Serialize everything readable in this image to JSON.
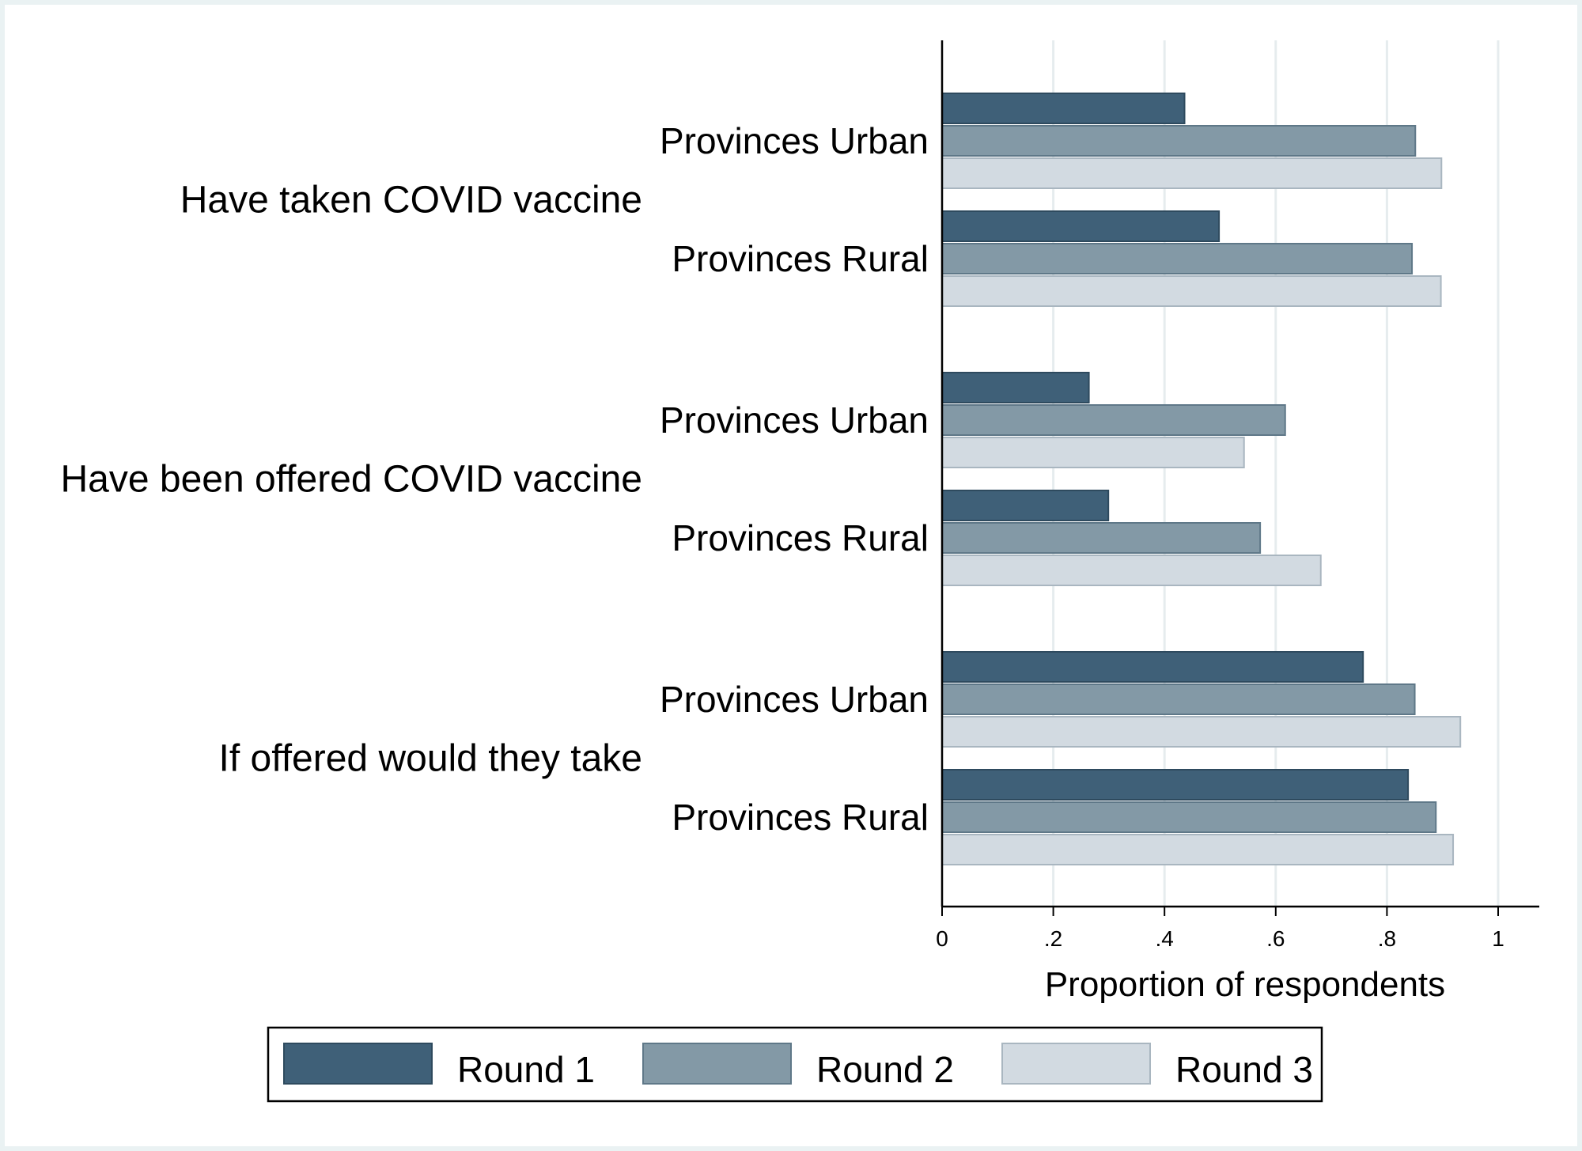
{
  "chart_data": {
    "type": "bar",
    "orientation": "horizontal",
    "xlabel": "Proportion of respondents",
    "xlim": [
      0,
      1.07
    ],
    "xticks": [
      {
        "value": 0,
        "label": "0"
      },
      {
        "value": 0.2,
        "label": ".2"
      },
      {
        "value": 0.4,
        "label": ".4"
      },
      {
        "value": 0.6,
        "label": ".6"
      },
      {
        "value": 0.8,
        "label": ".8"
      },
      {
        "value": 1,
        "label": "1"
      }
    ],
    "grid": true,
    "legend_position": "bottom",
    "groups": [
      {
        "label": "Have taken COVID vaccine",
        "subgroups": [
          {
            "label": "Provinces Urban",
            "values": [
              0.436,
              0.851,
              0.898
            ]
          },
          {
            "label": "Provinces Rural",
            "values": [
              0.498,
              0.845,
              0.897
            ]
          }
        ]
      },
      {
        "label": "Have been offered COVID vaccine",
        "subgroups": [
          {
            "label": "Provinces Urban",
            "values": [
              0.264,
              0.617,
              0.543
            ]
          },
          {
            "label": "Provinces Rural",
            "values": [
              0.299,
              0.572,
              0.681
            ]
          }
        ]
      },
      {
        "label": "If offered would they take",
        "subgroups": [
          {
            "label": "Provinces Urban",
            "values": [
              0.757,
              0.85,
              0.932
            ]
          },
          {
            "label": "Provinces Rural",
            "values": [
              0.838,
              0.888,
              0.919
            ]
          }
        ]
      }
    ],
    "series": [
      {
        "name": "Round 1",
        "color": "#3f6078",
        "stroke": "#2e4a5e"
      },
      {
        "name": "Round 2",
        "color": "#8399a6",
        "stroke": "#5f7888"
      },
      {
        "name": "Round 3",
        "color": "#d2dae1",
        "stroke": "#a9b6c0"
      }
    ]
  }
}
